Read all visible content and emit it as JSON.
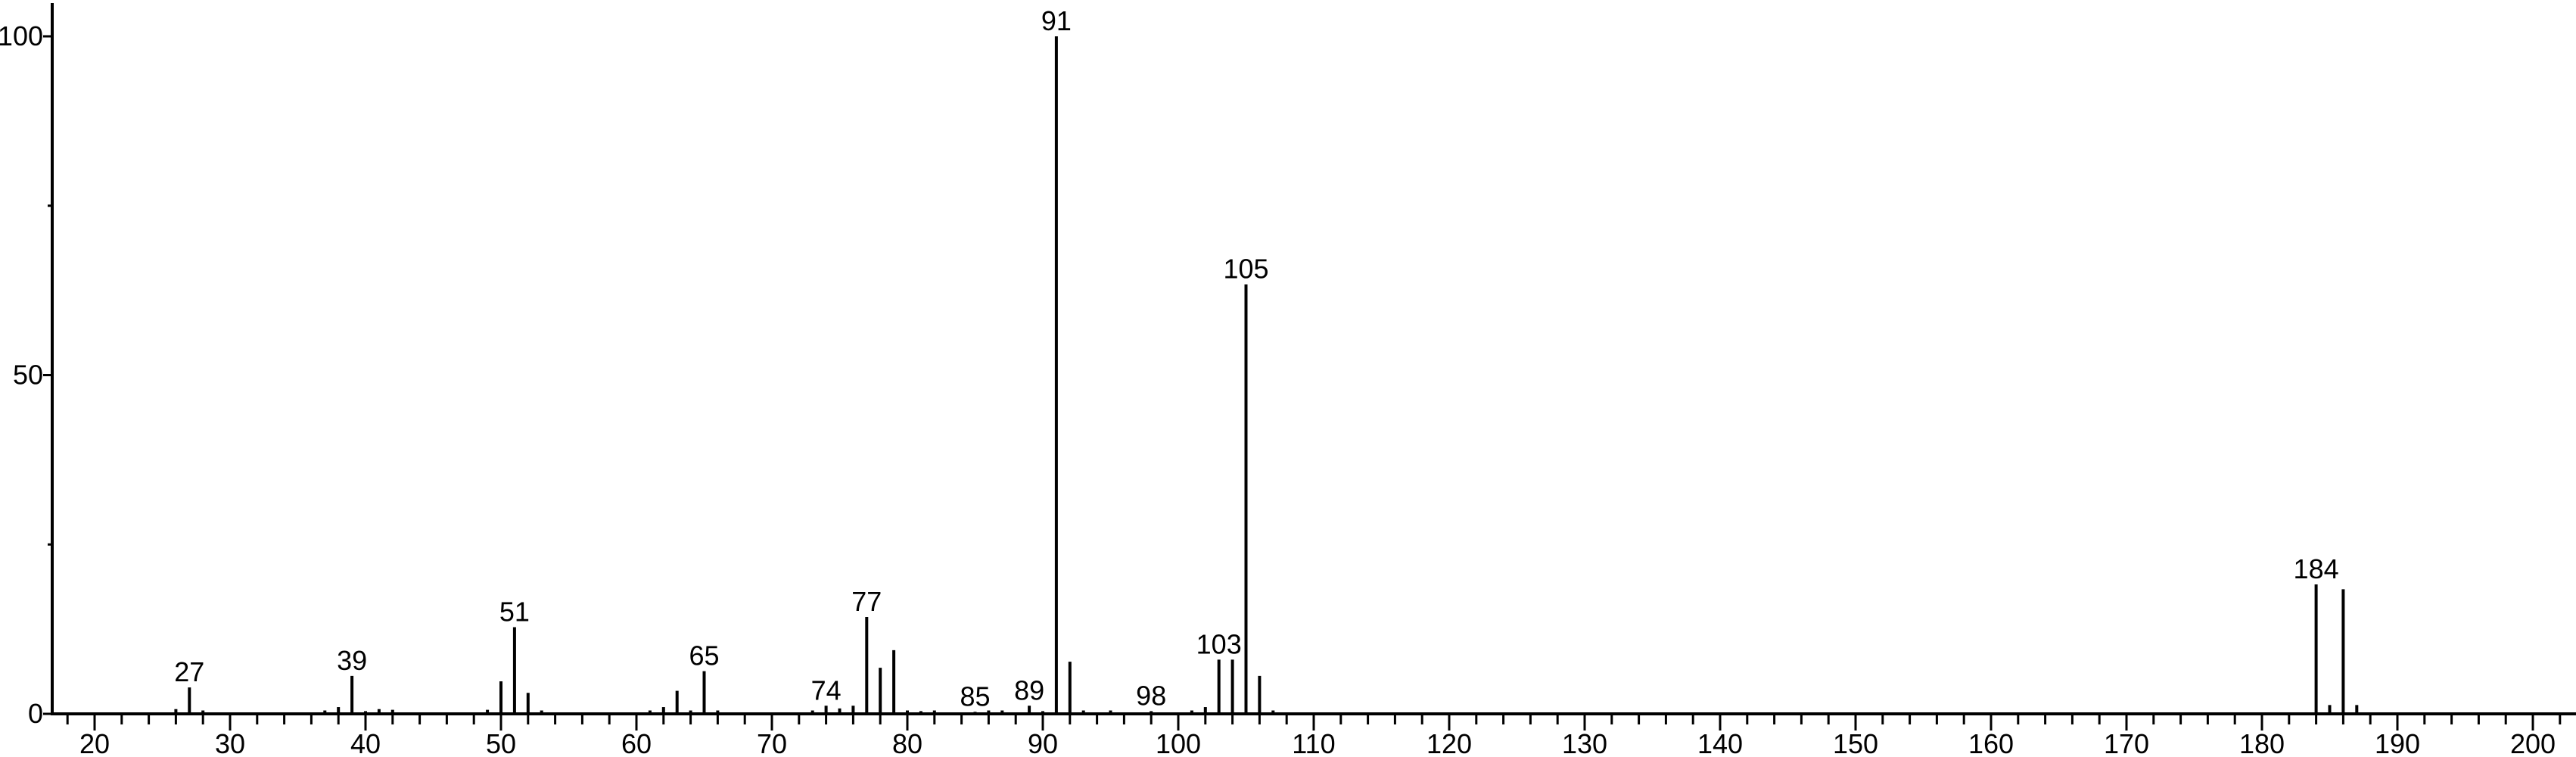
{
  "chart_data": {
    "type": "bar",
    "title": "",
    "xlabel": "",
    "ylabel": "",
    "xlim": [
      17,
      203
    ],
    "ylim": [
      0,
      100
    ],
    "x_ticks": [
      20,
      30,
      40,
      50,
      60,
      70,
      80,
      90,
      100,
      110,
      120,
      130,
      140,
      150,
      160,
      170,
      180,
      190,
      200
    ],
    "y_ticks": [
      0,
      50,
      100
    ],
    "grid": false,
    "color": "#000000",
    "peaks": [
      {
        "x": 26,
        "y": 0.7
      },
      {
        "x": 27,
        "y": 3.9
      },
      {
        "x": 28,
        "y": 0.5
      },
      {
        "x": 37,
        "y": 0.5
      },
      {
        "x": 38,
        "y": 1.0
      },
      {
        "x": 39,
        "y": 5.6
      },
      {
        "x": 40,
        "y": 0.4
      },
      {
        "x": 41,
        "y": 0.7
      },
      {
        "x": 42,
        "y": 0.6
      },
      {
        "x": 49,
        "y": 0.6
      },
      {
        "x": 50,
        "y": 4.8
      },
      {
        "x": 51,
        "y": 12.8
      },
      {
        "x": 52,
        "y": 3.1
      },
      {
        "x": 53,
        "y": 0.5
      },
      {
        "x": 61,
        "y": 0.5
      },
      {
        "x": 62,
        "y": 1.0
      },
      {
        "x": 63,
        "y": 3.4
      },
      {
        "x": 64,
        "y": 0.5
      },
      {
        "x": 65,
        "y": 6.3
      },
      {
        "x": 66,
        "y": 0.5
      },
      {
        "x": 73,
        "y": 0.5
      },
      {
        "x": 74,
        "y": 1.2
      },
      {
        "x": 75,
        "y": 0.8
      },
      {
        "x": 76,
        "y": 1.2
      },
      {
        "x": 77,
        "y": 14.3
      },
      {
        "x": 78,
        "y": 6.8
      },
      {
        "x": 79,
        "y": 9.4
      },
      {
        "x": 80,
        "y": 0.5
      },
      {
        "x": 81,
        "y": 0.4
      },
      {
        "x": 82,
        "y": 0.5
      },
      {
        "x": 85,
        "y": 0.3
      },
      {
        "x": 86,
        "y": 0.5
      },
      {
        "x": 87,
        "y": 0.5
      },
      {
        "x": 89,
        "y": 1.2
      },
      {
        "x": 90,
        "y": 0.4
      },
      {
        "x": 91,
        "y": 100
      },
      {
        "x": 92,
        "y": 7.7
      },
      {
        "x": 93,
        "y": 0.5
      },
      {
        "x": 95,
        "y": 0.5
      },
      {
        "x": 98,
        "y": 0.4
      },
      {
        "x": 101,
        "y": 0.5
      },
      {
        "x": 102,
        "y": 1.0
      },
      {
        "x": 103,
        "y": 8.0
      },
      {
        "x": 104,
        "y": 8.0
      },
      {
        "x": 105,
        "y": 63.4
      },
      {
        "x": 106,
        "y": 5.6
      },
      {
        "x": 107,
        "y": 0.5
      },
      {
        "x": 184,
        "y": 19.1
      },
      {
        "x": 185,
        "y": 1.3
      },
      {
        "x": 186,
        "y": 18.4
      },
      {
        "x": 187,
        "y": 1.3
      }
    ],
    "annotations": [
      {
        "x": 27,
        "text": "27"
      },
      {
        "x": 39,
        "text": "39"
      },
      {
        "x": 51,
        "text": "51"
      },
      {
        "x": 65,
        "text": "65"
      },
      {
        "x": 74,
        "text": "74"
      },
      {
        "x": 77,
        "text": "77"
      },
      {
        "x": 85,
        "text": "85"
      },
      {
        "x": 89,
        "text": "89"
      },
      {
        "x": 91,
        "text": "91"
      },
      {
        "x": 98,
        "text": "98"
      },
      {
        "x": 103,
        "text": "103"
      },
      {
        "x": 105,
        "text": "105"
      },
      {
        "x": 184,
        "text": "184"
      }
    ]
  }
}
